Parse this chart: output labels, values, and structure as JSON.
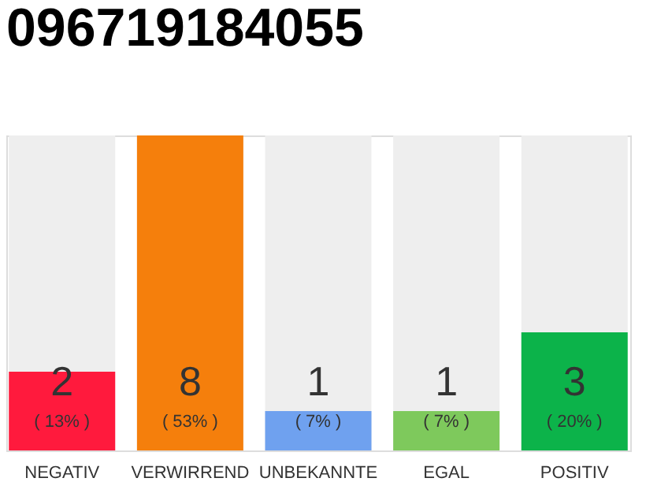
{
  "chart_data": {
    "type": "bar",
    "title": "096719184055",
    "categories": [
      "NEGATIV",
      "VERWIRREND",
      "UNBEKANNTE",
      "EGAL",
      "POSITIV"
    ],
    "values": [
      2,
      8,
      1,
      1,
      3
    ],
    "colors": [
      "#ff1a3d",
      "#f57f0c",
      "#6fa1ef",
      "#7ec95c",
      "#0cb34a"
    ],
    "data_labels": true,
    "annotations": [
      "( 13% )",
      "( 53% )",
      "( 7% )",
      "( 7% )",
      "( 20% )"
    ]
  }
}
